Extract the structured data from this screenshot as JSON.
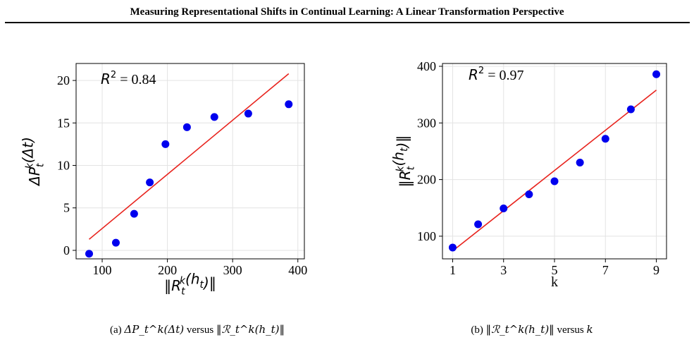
{
  "header": {
    "title": "Measuring Representational Shifts in Continual Learning: A Linear Transformation Perspective"
  },
  "captions": {
    "a": {
      "prefix": "(a) ",
      "lhs": "ΔP_t^k(Δt)",
      "middle": " versus ",
      "rhs": "‖ℛ_t^k(h_t)‖"
    },
    "b": {
      "prefix": "(b) ",
      "lhs": "‖ℛ_t^k(h_t)‖",
      "middle": " versus ",
      "rhs": "k"
    }
  },
  "colors": {
    "points": "#0000ee",
    "fit_line": "#e8231d",
    "grid": "#e3e3e3",
    "axis": "#000000"
  },
  "chart_data": [
    {
      "type": "scatter",
      "annotation": "R² = 0.84",
      "xlabel": "‖R_t^k(h_t)‖",
      "ylabel": "ΔP_t^k(Δt)",
      "xlim": [
        60,
        410
      ],
      "ylim": [
        -1,
        22
      ],
      "xticks": [
        100,
        200,
        300,
        400
      ],
      "yticks": [
        0,
        5,
        10,
        15,
        20
      ],
      "grid": true,
      "points": [
        {
          "x": 80,
          "y": -0.4
        },
        {
          "x": 121,
          "y": 0.9
        },
        {
          "x": 149,
          "y": 4.3
        },
        {
          "x": 173,
          "y": 8.0
        },
        {
          "x": 197,
          "y": 12.5
        },
        {
          "x": 230,
          "y": 14.5
        },
        {
          "x": 272,
          "y": 15.7
        },
        {
          "x": 324,
          "y": 16.1
        },
        {
          "x": 386,
          "y": 17.2
        }
      ],
      "fit_line": [
        {
          "x": 80,
          "y": 1.3
        },
        {
          "x": 386,
          "y": 20.8
        }
      ]
    },
    {
      "type": "scatter",
      "annotation": "R² = 0.97",
      "xlabel": "k",
      "ylabel": "‖R_t^k(h_t)‖",
      "xlim": [
        0.6,
        9.4
      ],
      "ylim": [
        60,
        405
      ],
      "xticks": [
        1,
        3,
        5,
        7,
        9
      ],
      "yticks": [
        100,
        200,
        300,
        400
      ],
      "grid": true,
      "points": [
        {
          "x": 1,
          "y": 80
        },
        {
          "x": 2,
          "y": 121
        },
        {
          "x": 3,
          "y": 149
        },
        {
          "x": 4,
          "y": 174
        },
        {
          "x": 5,
          "y": 197
        },
        {
          "x": 6,
          "y": 230
        },
        {
          "x": 7,
          "y": 272
        },
        {
          "x": 8,
          "y": 324
        },
        {
          "x": 9,
          "y": 386
        }
      ],
      "fit_line": [
        {
          "x": 1,
          "y": 74
        },
        {
          "x": 9,
          "y": 358
        }
      ]
    }
  ]
}
